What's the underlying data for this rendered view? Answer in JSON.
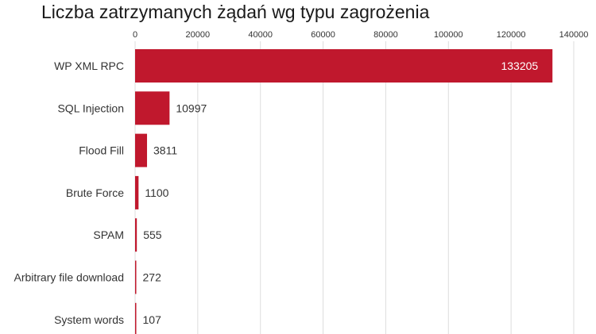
{
  "chart_data": {
    "type": "bar",
    "orientation": "horizontal",
    "title": "Liczba zatrzymanych żądań wg typu zagrożenia",
    "categories": [
      "WP XML RPC",
      "SQL Injection",
      "Flood Fill",
      "Brute Force",
      "SPAM",
      "Arbitrary file download",
      "System words"
    ],
    "values": [
      133205,
      10997,
      3811,
      1100,
      555,
      272,
      107
    ],
    "x_ticks": [
      0,
      20000,
      40000,
      60000,
      80000,
      100000,
      120000,
      140000
    ],
    "xlim": [
      0,
      140000
    ],
    "xlabel": "",
    "ylabel": "",
    "grid": true,
    "axis_position": "top",
    "legend": "none",
    "colors": {
      "bar": "#c0182d",
      "grid": "#dddddd",
      "text": "#333333",
      "inside_label": "#ffffff"
    }
  }
}
